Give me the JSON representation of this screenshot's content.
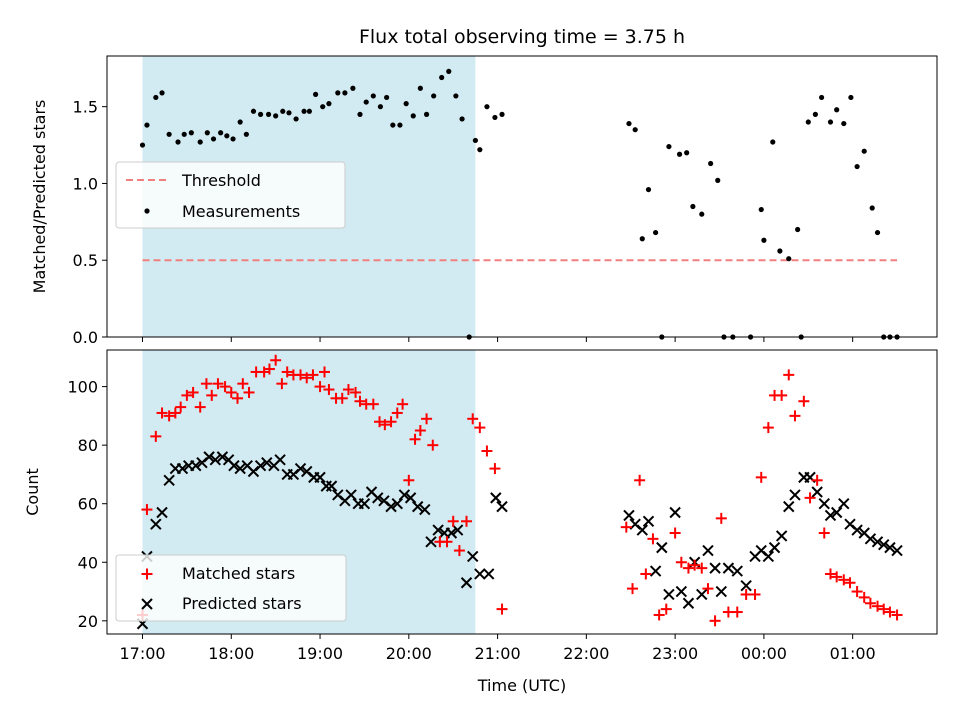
{
  "colors": {
    "shade": "#add8e6",
    "threshold": "#f08080",
    "measure": "#000000",
    "matched": "#ff0000",
    "predicted": "#000000"
  },
  "chart_data": [
    {
      "type": "scatter",
      "title": "Flux total observing time = 3.75 h",
      "xlabel": "",
      "ylabel": "Matched/Predicted stars",
      "xlim_hours": [
        16.6,
        25.95
      ],
      "ylim": [
        0,
        1.83
      ],
      "xticks": [
        17,
        18,
        19,
        20,
        21,
        22,
        23,
        24,
        25
      ],
      "yticks": [
        {
          "v": 0,
          "label": "0.0"
        },
        {
          "v": 0.5,
          "label": "0.5"
        },
        {
          "v": 1.0,
          "label": "1.0"
        },
        {
          "v": 1.5,
          "label": "1.5"
        }
      ],
      "shaded_span_hours": [
        17.0,
        20.75
      ],
      "threshold": 0.5,
      "threshold_x_hours": [
        17.0,
        25.5
      ],
      "legend": {
        "position": "center-left",
        "threshold_label": "Threshold",
        "measure_label": "Measurements"
      },
      "series": [
        {
          "name": "Measurements",
          "x": [
            17.0,
            17.05,
            17.15,
            17.22,
            17.3,
            17.4,
            17.47,
            17.55,
            17.65,
            17.73,
            17.8,
            17.88,
            17.95,
            18.02,
            18.1,
            18.17,
            18.25,
            18.33,
            18.42,
            18.5,
            18.58,
            18.65,
            18.73,
            18.82,
            18.88,
            18.95,
            19.03,
            19.1,
            19.2,
            19.28,
            19.37,
            19.45,
            19.52,
            19.6,
            19.68,
            19.75,
            19.82,
            19.9,
            19.97,
            20.05,
            20.13,
            20.2,
            20.28,
            20.37,
            20.45,
            20.53,
            20.6,
            20.68,
            20.75,
            20.8,
            20.88,
            20.97,
            21.05,
            22.48,
            22.55,
            22.63,
            22.7,
            22.78,
            22.85,
            22.93,
            23.05,
            23.13,
            23.2,
            23.3,
            23.4,
            23.48,
            23.55,
            23.65,
            23.85,
            23.97,
            24.0,
            24.1,
            24.18,
            24.28,
            24.38,
            24.42,
            24.5,
            24.58,
            24.65,
            24.75,
            24.82,
            24.9,
            24.98,
            25.05,
            25.13,
            25.22,
            25.28,
            25.35,
            25.42,
            25.5
          ],
          "y": [
            1.25,
            1.38,
            1.56,
            1.59,
            1.32,
            1.27,
            1.32,
            1.33,
            1.27,
            1.33,
            1.29,
            1.33,
            1.31,
            1.29,
            1.4,
            1.32,
            1.47,
            1.45,
            1.45,
            1.44,
            1.47,
            1.46,
            1.42,
            1.47,
            1.47,
            1.58,
            1.5,
            1.52,
            1.59,
            1.59,
            1.62,
            1.45,
            1.53,
            1.57,
            1.5,
            1.56,
            1.38,
            1.38,
            1.52,
            1.44,
            1.62,
            1.45,
            1.57,
            1.69,
            1.73,
            1.57,
            1.42,
            0.0,
            1.28,
            1.22,
            1.5,
            1.43,
            1.45,
            1.39,
            1.35,
            0.64,
            0.96,
            0.68,
            0.0,
            1.24,
            1.19,
            1.2,
            0.85,
            0.8,
            1.13,
            1.02,
            0.0,
            0.0,
            0.0,
            0.83,
            0.63,
            1.27,
            0.56,
            0.51,
            0.7,
            0.0,
            1.4,
            1.45,
            1.56,
            1.4,
            1.48,
            1.39,
            1.56,
            1.11,
            1.21,
            0.84,
            0.68,
            0.0,
            0.0,
            0.0
          ]
        }
      ]
    },
    {
      "type": "scatter",
      "title": "",
      "xlabel": "Time (UTC)",
      "ylabel": "Count",
      "xlim_hours": [
        16.6,
        25.95
      ],
      "ylim": [
        15.5,
        112.5
      ],
      "xticks": [
        17,
        18,
        19,
        20,
        21,
        22,
        23,
        24,
        25
      ],
      "xtick_labels": [
        "17:00",
        "18:00",
        "19:00",
        "20:00",
        "21:00",
        "22:00",
        "23:00",
        "00:00",
        "01:00"
      ],
      "yticks": [
        {
          "v": 20,
          "label": "20"
        },
        {
          "v": 40,
          "label": "40"
        },
        {
          "v": 60,
          "label": "60"
        },
        {
          "v": 80,
          "label": "80"
        },
        {
          "v": 100,
          "label": "100"
        }
      ],
      "shaded_span_hours": [
        17.0,
        20.75
      ],
      "legend": {
        "position": "lower-left",
        "matched_label": "Matched stars",
        "predicted_label": "Predicted stars"
      },
      "series": [
        {
          "name": "Matched stars",
          "marker": "plus",
          "x": [
            17.0,
            17.05,
            17.15,
            17.22,
            17.3,
            17.37,
            17.43,
            17.5,
            17.57,
            17.65,
            17.72,
            17.78,
            17.85,
            17.93,
            18.0,
            18.07,
            18.13,
            18.2,
            18.28,
            18.37,
            18.43,
            18.5,
            18.57,
            18.63,
            18.7,
            18.78,
            18.85,
            18.92,
            19.0,
            19.05,
            19.1,
            19.18,
            19.25,
            19.32,
            19.4,
            19.45,
            19.52,
            19.6,
            19.67,
            19.73,
            19.8,
            19.87,
            19.93,
            20.0,
            20.07,
            20.13,
            20.2,
            20.27,
            20.35,
            20.43,
            20.5,
            20.57,
            20.65,
            20.72,
            20.8,
            20.88,
            20.97,
            21.05,
            22.45,
            22.52,
            22.6,
            22.67,
            22.75,
            22.82,
            22.9,
            23.0,
            23.07,
            23.15,
            23.22,
            23.3,
            23.37,
            23.45,
            23.52,
            23.6,
            23.7,
            23.8,
            23.9,
            23.97,
            24.05,
            24.12,
            24.2,
            24.28,
            24.35,
            24.45,
            24.52,
            24.6,
            24.68,
            24.75,
            24.82,
            24.9,
            24.97,
            25.05,
            25.13,
            25.2,
            25.28,
            25.35,
            25.42,
            25.5
          ],
          "y": [
            22,
            58,
            83,
            91,
            90,
            91,
            93,
            97,
            98,
            93,
            101,
            97,
            101,
            100,
            98,
            96,
            101,
            98,
            105,
            105,
            106,
            109,
            101,
            105,
            104,
            104,
            103,
            104,
            100,
            105,
            99,
            96,
            96,
            99,
            98,
            95,
            94,
            94,
            88,
            87,
            88,
            91,
            94,
            68,
            82,
            85,
            89,
            80,
            47,
            47,
            54,
            44,
            54,
            89,
            86,
            78,
            72,
            24,
            52,
            31,
            68,
            36,
            48,
            22,
            24,
            50,
            40,
            38,
            39,
            38,
            31,
            20,
            55,
            23,
            23,
            29,
            29,
            69,
            86,
            97,
            97,
            104,
            90,
            95,
            62,
            68,
            50,
            36,
            35,
            34,
            33,
            30,
            28,
            26,
            25,
            24,
            23,
            22
          ]
        },
        {
          "name": "Predicted stars",
          "marker": "x",
          "x": [
            17.0,
            17.05,
            17.15,
            17.22,
            17.3,
            17.37,
            17.45,
            17.52,
            17.6,
            17.67,
            17.75,
            17.82,
            17.9,
            17.97,
            18.03,
            18.1,
            18.18,
            18.25,
            18.33,
            18.4,
            18.48,
            18.55,
            18.63,
            18.7,
            18.78,
            18.85,
            18.93,
            19.0,
            19.07,
            19.13,
            19.2,
            19.28,
            19.35,
            19.43,
            19.5,
            19.58,
            19.65,
            19.72,
            19.8,
            19.87,
            19.95,
            20.02,
            20.1,
            20.18,
            20.25,
            20.33,
            20.4,
            20.48,
            20.55,
            20.65,
            20.72,
            20.8,
            20.9,
            20.98,
            21.05,
            22.48,
            22.55,
            22.63,
            22.7,
            22.78,
            22.85,
            22.93,
            23.0,
            23.07,
            23.15,
            23.22,
            23.3,
            23.37,
            23.45,
            23.52,
            23.6,
            23.7,
            23.8,
            23.9,
            23.97,
            24.05,
            24.12,
            24.2,
            24.28,
            24.35,
            24.45,
            24.52,
            24.6,
            24.68,
            24.75,
            24.82,
            24.9,
            24.97,
            25.05,
            25.13,
            25.2,
            25.28,
            25.35,
            25.42,
            25.5
          ],
          "y": [
            19,
            42,
            53,
            57,
            68,
            72,
            72,
            73,
            73,
            74,
            76,
            75,
            76,
            75,
            73,
            72,
            73,
            71,
            73,
            74,
            73,
            75,
            70,
            70,
            72,
            71,
            69,
            69,
            66,
            66,
            63,
            61,
            63,
            60,
            60,
            64,
            62,
            61,
            59,
            60,
            63,
            62,
            59,
            58,
            47,
            51,
            50,
            50,
            51,
            33,
            42,
            36,
            36,
            62,
            59,
            56,
            53,
            51,
            54,
            37,
            45,
            29,
            57,
            30,
            26,
            40,
            29,
            44,
            38,
            30,
            38,
            37,
            32,
            42,
            44,
            42,
            45,
            49,
            59,
            63,
            69,
            69,
            64,
            60,
            56,
            57,
            60,
            53,
            51,
            50,
            48,
            47,
            46,
            45,
            44
          ]
        }
      ]
    }
  ]
}
